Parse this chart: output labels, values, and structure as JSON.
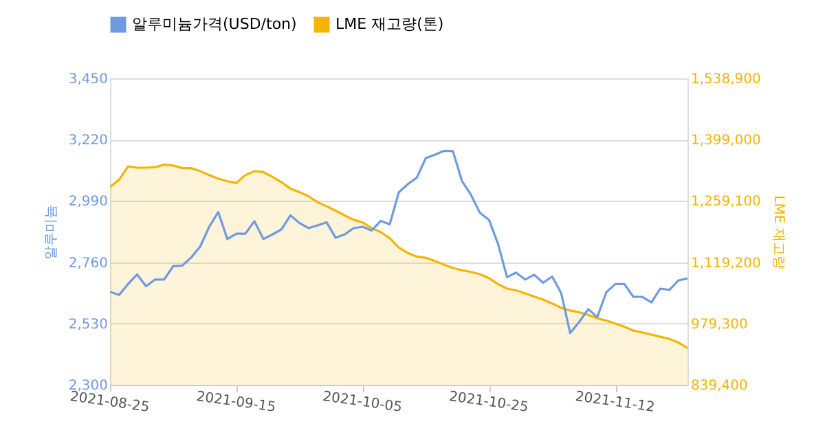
{
  "chart_data": {
    "type": "line",
    "ylabel": "알루미늄",
    "y2label": "LME 재고량",
    "legend": "top",
    "grid": "y",
    "categories": [
      "2021-08-25",
      null,
      null,
      null,
      null,
      null,
      null,
      null,
      null,
      null,
      null,
      null,
      null,
      null,
      "2021-09-15",
      null,
      null,
      null,
      null,
      null,
      null,
      null,
      null,
      null,
      null,
      null,
      null,
      null,
      "2021-10-05",
      null,
      null,
      null,
      null,
      null,
      null,
      null,
      null,
      null,
      null,
      null,
      null,
      null,
      "2021-10-25",
      null,
      null,
      null,
      null,
      null,
      null,
      null,
      null,
      null,
      null,
      null,
      null,
      null,
      "2021-11-12",
      null,
      null,
      null,
      null,
      null,
      null,
      null,
      null
    ],
    "ylim": [
      2300,
      3450
    ],
    "yticks": [
      {
        "value": 2300,
        "label": "2,300"
      },
      {
        "value": 2530,
        "label": "2,530"
      },
      {
        "value": 2760,
        "label": "2,760"
      },
      {
        "value": 2990,
        "label": "2,990"
      },
      {
        "value": 3220,
        "label": "3,220"
      },
      {
        "value": 3450,
        "label": "3,450"
      }
    ],
    "y2lim": [
      839400,
      1538900
    ],
    "y2ticks": [
      {
        "value": 839400,
        "label": "839,400"
      },
      {
        "value": 979300,
        "label": "979,300"
      },
      {
        "value": 1119200,
        "label": "1,119,200"
      },
      {
        "value": 1259100,
        "label": "1,259,100"
      },
      {
        "value": 1399000,
        "label": "1,399,000"
      },
      {
        "value": 1538900,
        "label": "1,538,900"
      }
    ],
    "series": [
      {
        "name": "알루미늄가격(USD/ton)",
        "type": "line",
        "color": "#6f9ae0",
        "values": [
          2649,
          2637,
          2678,
          2714,
          2670,
          2695,
          2695,
          2745,
          2747,
          2778,
          2819,
          2893,
          2948,
          2847,
          2867,
          2867,
          2914,
          2847,
          2864,
          2883,
          2936,
          2907,
          2888,
          2898,
          2910,
          2852,
          2864,
          2888,
          2893,
          2879,
          2915,
          2902,
          3022,
          3053,
          3077,
          3151,
          3163,
          3178,
          3177,
          3065,
          3013,
          2945,
          2919,
          2829,
          2704,
          2721,
          2695,
          2713,
          2683,
          2706,
          2644,
          2494,
          2536,
          2584,
          2554,
          2647,
          2678,
          2678,
          2630,
          2630,
          2609,
          2661,
          2656,
          2692,
          2699
        ]
      },
      {
        "name": "LME 재고량(톤)",
        "type": "area",
        "axis": "y2",
        "color": "#f5b400",
        "values": [
          1291000,
          1307000,
          1338000,
          1335000,
          1335000,
          1336000,
          1342000,
          1340000,
          1334000,
          1334000,
          1327000,
          1318000,
          1310000,
          1304000,
          1300000,
          1318000,
          1327000,
          1325000,
          1314000,
          1302000,
          1287000,
          1279000,
          1270000,
          1256000,
          1247000,
          1237000,
          1226000,
          1216000,
          1210000,
          1197000,
          1188000,
          1174000,
          1153000,
          1140000,
          1132000,
          1129000,
          1122000,
          1114000,
          1106000,
          1101000,
          1097000,
          1092000,
          1083000,
          1069000,
          1059000,
          1055000,
          1048000,
          1041000,
          1034000,
          1025000,
          1015000,
          1009000,
          1005000,
          999000,
          991000,
          986000,
          979000,
          972000,
          963000,
          959000,
          954000,
          949000,
          944000,
          936000,
          923000
        ]
      }
    ]
  }
}
